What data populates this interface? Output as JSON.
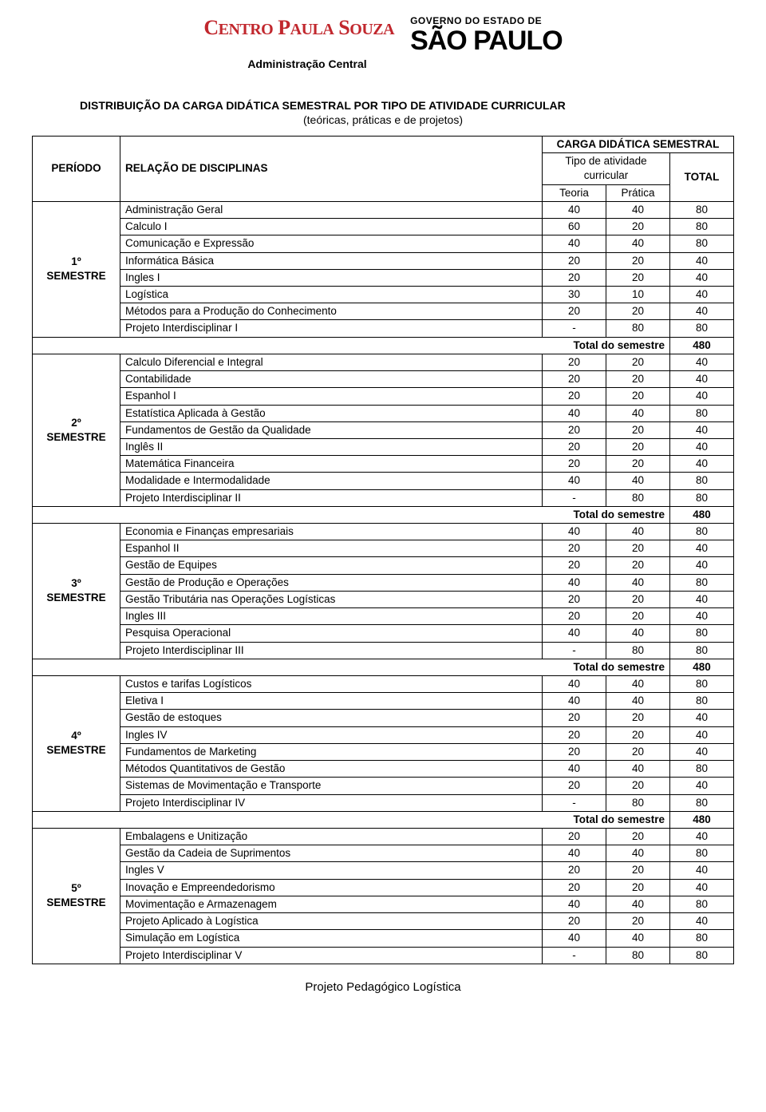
{
  "header": {
    "cps": "CENTRO PAULA SOUZA",
    "sp_top": "GOVERNO DO ESTADO DE",
    "sp_bottom": "SÃO PAULO",
    "sub": "Administração Central"
  },
  "title": "DISTRIBUIÇÃO DA CARGA DIDÁTICA SEMESTRAL POR TIPO DE ATIVIDADE CURRICULAR",
  "subtitle": "(teóricas, práticas e de projetos)",
  "columns": {
    "periodo": "PERÍODO",
    "relacao": "RELAÇÃO DE DISCIPLINAS",
    "carga": "CARGA DIDÁTICA SEMESTRAL",
    "tipo": "Tipo de atividade curricular",
    "teoria": "Teoria",
    "pratica": "Prática",
    "total": "TOTAL"
  },
  "total_label": "Total do semestre",
  "semesters": [
    {
      "label": "1º\nSEMESTRE",
      "rows": [
        {
          "d": "Administração Geral",
          "t": "40",
          "p": "40",
          "tot": "80"
        },
        {
          "d": "Calculo I",
          "t": "60",
          "p": "20",
          "tot": "80"
        },
        {
          "d": "Comunicação e Expressão",
          "t": "40",
          "p": "40",
          "tot": "80"
        },
        {
          "d": "Informática Básica",
          "t": "20",
          "p": "20",
          "tot": "40"
        },
        {
          "d": "Ingles I",
          "t": "20",
          "p": "20",
          "tot": "40"
        },
        {
          "d": "Logística",
          "t": "30",
          "p": "10",
          "tot": "40"
        },
        {
          "d": "Métodos para a Produção do Conhecimento",
          "t": "20",
          "p": "20",
          "tot": "40"
        },
        {
          "d": "Projeto Interdisciplinar I",
          "t": "-",
          "p": "80",
          "tot": "80"
        }
      ],
      "total": "480"
    },
    {
      "label": "2º\nSEMESTRE",
      "rows": [
        {
          "d": "Calculo Diferencial e Integral",
          "t": "20",
          "p": "20",
          "tot": "40"
        },
        {
          "d": "Contabilidade",
          "t": "20",
          "p": "20",
          "tot": "40"
        },
        {
          "d": "Espanhol I",
          "t": "20",
          "p": "20",
          "tot": "40"
        },
        {
          "d": "Estatística Aplicada à Gestão",
          "t": "40",
          "p": "40",
          "tot": "80"
        },
        {
          "d": "Fundamentos de Gestão da Qualidade",
          "t": "20",
          "p": "20",
          "tot": "40"
        },
        {
          "d": "Inglês II",
          "t": "20",
          "p": "20",
          "tot": "40"
        },
        {
          "d": "Matemática Financeira",
          "t": "20",
          "p": "20",
          "tot": "40"
        },
        {
          "d": "Modalidade e Intermodalidade",
          "t": "40",
          "p": "40",
          "tot": "80"
        },
        {
          "d": "Projeto Interdisciplinar II",
          "t": "-",
          "p": "80",
          "tot": "80"
        }
      ],
      "total": "480"
    },
    {
      "label": "3º\nSEMESTRE",
      "rows": [
        {
          "d": "Economia e Finanças empresariais",
          "t": "40",
          "p": "40",
          "tot": "80"
        },
        {
          "d": "Espanhol II",
          "t": "20",
          "p": "20",
          "tot": "40"
        },
        {
          "d": "Gestão de Equipes",
          "t": "20",
          "p": "20",
          "tot": "40"
        },
        {
          "d": "Gestão de Produção e Operações",
          "t": "40",
          "p": "40",
          "tot": "80"
        },
        {
          "d": "Gestão Tributária nas Operações Logísticas",
          "t": "20",
          "p": "20",
          "tot": "40"
        },
        {
          "d": "Ingles III",
          "t": "20",
          "p": "20",
          "tot": "40"
        },
        {
          "d": "Pesquisa Operacional",
          "t": "40",
          "p": "40",
          "tot": "80"
        },
        {
          "d": "Projeto Interdisciplinar III",
          "t": "-",
          "p": "80",
          "tot": "80"
        }
      ],
      "total": "480"
    },
    {
      "label": "4º\nSEMESTRE",
      "rows": [
        {
          "d": "Custos e tarifas Logísticos",
          "t": "40",
          "p": "40",
          "tot": "80"
        },
        {
          "d": "Eletiva I",
          "t": "40",
          "p": "40",
          "tot": "80"
        },
        {
          "d": "Gestão de estoques",
          "t": "20",
          "p": "20",
          "tot": "40"
        },
        {
          "d": "Ingles IV",
          "t": "20",
          "p": "20",
          "tot": "40"
        },
        {
          "d": "Fundamentos de Marketing",
          "t": "20",
          "p": "20",
          "tot": "40"
        },
        {
          "d": "Métodos Quantitativos de Gestão",
          "t": "40",
          "p": "40",
          "tot": "80"
        },
        {
          "d": "Sistemas de Movimentação e Transporte",
          "t": "20",
          "p": "20",
          "tot": "40"
        },
        {
          "d": "Projeto Interdisciplinar IV",
          "t": "-",
          "p": "80",
          "tot": "80"
        }
      ],
      "total": "480"
    },
    {
      "label": "5º\nSEMESTRE",
      "rows": [
        {
          "d": "Embalagens e Unitização",
          "t": "20",
          "p": "20",
          "tot": "40"
        },
        {
          "d": "Gestão da Cadeia de Suprimentos",
          "t": "40",
          "p": "40",
          "tot": "80"
        },
        {
          "d": "Ingles V",
          "t": "20",
          "p": "20",
          "tot": "40"
        },
        {
          "d": "Inovação e Empreendedorismo",
          "t": "20",
          "p": "20",
          "tot": "40"
        },
        {
          "d": "Movimentação e Armazenagem",
          "t": "40",
          "p": "40",
          "tot": "80"
        },
        {
          "d": "Projeto Aplicado à Logística",
          "t": "20",
          "p": "20",
          "tot": "40"
        },
        {
          "d": "Simulação em Logística",
          "t": "40",
          "p": "40",
          "tot": "80"
        },
        {
          "d": "Projeto Interdisciplinar V",
          "t": "-",
          "p": "80",
          "tot": "80"
        }
      ],
      "total": null
    }
  ],
  "footer": "Projeto Pedagógico Logística"
}
